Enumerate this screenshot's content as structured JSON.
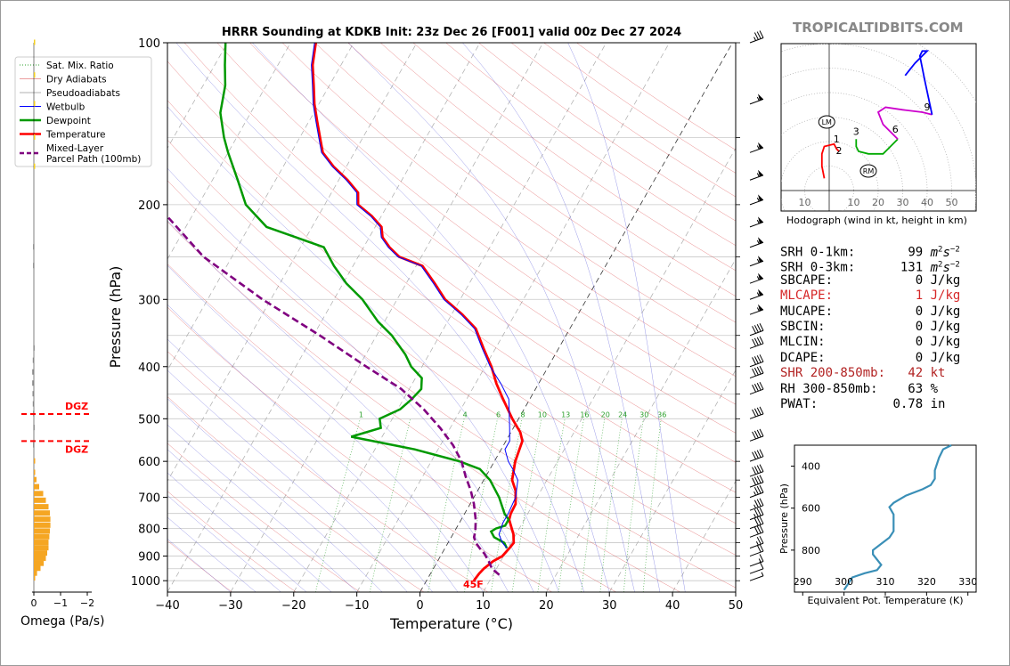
{
  "brand": "TROPICALTIDBITS.COM",
  "chart_data": [
    {
      "type": "line",
      "title": "HRRR Sounding at KDKB Init: 23z Dec 26 [F001] valid 00z Dec 27 2024",
      "xlabel": "Temperature (°C)",
      "ylabel": "Pressure (hPa)",
      "xlim": [
        -40,
        50
      ],
      "ylim": [
        1050,
        100
      ],
      "yscale": "log",
      "skew": true,
      "x_ticks": [
        "−40",
        "−30",
        "−20",
        "−10",
        "0",
        "10",
        "20",
        "30",
        "40",
        "50"
      ],
      "y_ticks": [
        "100",
        "200",
        "300",
        "400",
        "500",
        "600",
        "700",
        "800",
        "900",
        "1000"
      ],
      "legend": [
        "Sat. Mix. Ratio",
        "Dry Adiabats",
        "Pseudoadiabats",
        "Wetbulb",
        "Dewpoint",
        "Temperature",
        "Mixed-Layer\nParcel Path (100mb)"
      ],
      "legend_position": "outside-left",
      "colors": {
        "temperature": "#ff0000",
        "dewpoint": "#009900",
        "wetbulb": "#0000ff",
        "parcel": "#800080",
        "dry_adiabat": "#d62728",
        "moist_adiabat": "#1f1fcc",
        "mix_ratio": "#2ca02c"
      },
      "mixing_ratio_labels": [
        "1",
        "4",
        "6",
        "8",
        "10",
        "13",
        "16",
        "20",
        "24",
        "30",
        "36"
      ],
      "surface_temp_label": "45F",
      "series": [
        {
          "name": "Temperature",
          "points": [
            [
              7.5,
              1000
            ],
            [
              7.7,
              970
            ],
            [
              8.0,
              950
            ],
            [
              8.8,
              920
            ],
            [
              9.8,
              900
            ],
            [
              10.2,
              870
            ],
            [
              10.4,
              850
            ],
            [
              9.6,
              820
            ],
            [
              8.4,
              790
            ],
            [
              7.6,
              770
            ],
            [
              7.3,
              750
            ],
            [
              7.2,
              720
            ],
            [
              6.6,
              700
            ],
            [
              6.0,
              680
            ],
            [
              4.5,
              650
            ],
            [
              3.3,
              600
            ],
            [
              2.6,
              550
            ],
            [
              1.5,
              530
            ],
            [
              -1.0,
              500
            ],
            [
              -4.2,
              460
            ],
            [
              -6.7,
              430
            ],
            [
              -9.0,
              400
            ],
            [
              -11.9,
              370
            ],
            [
              -14.9,
              340
            ],
            [
              -18.3,
              320
            ],
            [
              -22.4,
              300
            ],
            [
              -25.5,
              280
            ],
            [
              -29.0,
              260
            ],
            [
              -33.5,
              250
            ],
            [
              -35.9,
              240
            ],
            [
              -37.9,
              230
            ],
            [
              -39.0,
              220
            ],
            [
              -41.5,
              210
            ],
            [
              -44.7,
              200
            ],
            [
              -45.8,
              190
            ],
            [
              -48.6,
              180
            ],
            [
              -52.0,
              170
            ],
            [
              -55.0,
              160
            ],
            [
              -56.8,
              150
            ],
            [
              -58.7,
              140
            ],
            [
              -60.7,
              130
            ],
            [
              -62.5,
              120
            ],
            [
              -64.5,
              110
            ],
            [
              -66.0,
              100
            ]
          ]
        },
        {
          "name": "Dewpoint",
          "points": [
            [
              9.8,
              870
            ],
            [
              8.9,
              850
            ],
            [
              6.8,
              830
            ],
            [
              5.8,
              810
            ],
            [
              6.3,
              800
            ],
            [
              7.5,
              790
            ],
            [
              7.5,
              770
            ],
            [
              6.3,
              750
            ],
            [
              4.0,
              700
            ],
            [
              1.0,
              650
            ],
            [
              -1.6,
              620
            ],
            [
              -5.5,
              600
            ],
            [
              -13.7,
              570
            ],
            [
              -17.3,
              560
            ],
            [
              -24.9,
              540
            ],
            [
              -21.0,
              520
            ],
            [
              -22.0,
              500
            ],
            [
              -19.6,
              480
            ],
            [
              -18.7,
              460
            ],
            [
              -18.1,
              440
            ],
            [
              -19.0,
              420
            ],
            [
              -21.7,
              400
            ],
            [
              -23.7,
              380
            ],
            [
              -27.6,
              350
            ],
            [
              -31.0,
              330
            ],
            [
              -35.5,
              300
            ],
            [
              -39.5,
              280
            ],
            [
              -43.0,
              260
            ],
            [
              -46.3,
              240
            ],
            [
              -51.6,
              230
            ],
            [
              -57.2,
              220
            ],
            [
              -62.5,
              200
            ],
            [
              -66.0,
              180
            ],
            [
              -70.0,
              160
            ],
            [
              -72.0,
              150
            ],
            [
              -74.8,
              135
            ],
            [
              -76.5,
              120
            ],
            [
              -78.4,
              110
            ],
            [
              -80.3,
              100
            ]
          ]
        },
        {
          "name": "Wetbulb",
          "points": [
            [
              9.8,
              870
            ],
            [
              8.6,
              850
            ],
            [
              7.3,
              820
            ],
            [
              6.9,
              780
            ],
            [
              6.9,
              750
            ],
            [
              6.6,
              700
            ],
            [
              5.4,
              650
            ],
            [
              3.6,
              620
            ],
            [
              2.2,
              600
            ],
            [
              0.6,
              570
            ],
            [
              0.6,
              550
            ],
            [
              -0.6,
              520
            ],
            [
              -3.3,
              460
            ],
            [
              -6.0,
              430
            ],
            [
              -9.2,
              400
            ],
            [
              -12.1,
              370
            ],
            [
              -15.1,
              340
            ],
            [
              -18.5,
              320
            ],
            [
              -22.6,
              300
            ],
            [
              -25.7,
              280
            ],
            [
              -29.2,
              260
            ],
            [
              -33.7,
              250
            ],
            [
              -36.1,
              240
            ],
            [
              -38.1,
              230
            ],
            [
              -39.2,
              220
            ],
            [
              -41.7,
              210
            ],
            [
              -44.9,
              200
            ],
            [
              -46.0,
              190
            ],
            [
              -48.8,
              180
            ],
            [
              -52.2,
              170
            ],
            [
              -55.2,
              160
            ],
            [
              -57.0,
              150
            ],
            [
              -58.9,
              140
            ],
            [
              -60.9,
              130
            ],
            [
              -62.7,
              120
            ],
            [
              -64.7,
              110
            ],
            [
              -66.2,
              100
            ]
          ]
        },
        {
          "name": "Mixed-Layer\nParcel Path (100mb)",
          "points": [
            [
              11.0,
              975
            ],
            [
              9.3,
              950
            ],
            [
              8.1,
              920
            ],
            [
              6.7,
              890
            ],
            [
              5.5,
              870
            ],
            [
              4.4,
              850
            ],
            [
              3.6,
              830
            ],
            [
              3.3,
              810
            ],
            [
              2.3,
              770
            ],
            [
              0.6,
              720
            ],
            [
              -1.1,
              680
            ],
            [
              -3.2,
              640
            ],
            [
              -5.2,
              600
            ],
            [
              -8.0,
              560
            ],
            [
              -11.6,
              520
            ],
            [
              -15.9,
              480
            ],
            [
              -21.3,
              440
            ],
            [
              -28.8,
              400
            ],
            [
              -39.0,
              350
            ],
            [
              -51.3,
              300
            ],
            [
              -64.5,
              250
            ],
            [
              -76.6,
              200
            ],
            [
              -81.0,
              185
            ]
          ]
        }
      ],
      "wind_barbs_kt": [
        {
          "p": 1000,
          "speed": 5
        },
        {
          "p": 970,
          "speed": 10
        },
        {
          "p": 940,
          "speed": 15
        },
        {
          "p": 900,
          "speed": 20
        },
        {
          "p": 870,
          "speed": 25
        },
        {
          "p": 830,
          "speed": 30
        },
        {
          "p": 800,
          "speed": 30
        },
        {
          "p": 770,
          "speed": 35
        },
        {
          "p": 740,
          "speed": 35
        },
        {
          "p": 700,
          "speed": 35
        },
        {
          "p": 670,
          "speed": 40
        },
        {
          "p": 640,
          "speed": 40
        },
        {
          "p": 600,
          "speed": 40
        },
        {
          "p": 550,
          "speed": 40
        },
        {
          "p": 500,
          "speed": 40
        },
        {
          "p": 450,
          "speed": 40
        },
        {
          "p": 420,
          "speed": 40
        },
        {
          "p": 400,
          "speed": 40
        },
        {
          "p": 370,
          "speed": 40
        },
        {
          "p": 350,
          "speed": 40
        },
        {
          "p": 320,
          "speed": 55
        },
        {
          "p": 300,
          "speed": 55
        },
        {
          "p": 280,
          "speed": 55
        },
        {
          "p": 260,
          "speed": 55
        },
        {
          "p": 240,
          "speed": 55
        },
        {
          "p": 220,
          "speed": 55
        },
        {
          "p": 200,
          "speed": 55
        },
        {
          "p": 180,
          "speed": 55
        },
        {
          "p": 160,
          "speed": 55
        },
        {
          "p": 130,
          "speed": 55
        },
        {
          "p": 100,
          "speed": 35
        }
      ]
    },
    {
      "type": "bar",
      "name": "omega",
      "xlabel": "Omega (Pa/s)",
      "x_ticks": [
        "0",
        "−1",
        "−2"
      ],
      "xlim": [
        0,
        -2
      ],
      "dgz_label": "DGZ",
      "dgz_bounds_hpa": [
        490,
        550
      ],
      "bars": [
        {
          "p": 990,
          "value": -0.05
        },
        {
          "p": 970,
          "value": -0.12
        },
        {
          "p": 950,
          "value": -0.25
        },
        {
          "p": 930,
          "value": -0.37
        },
        {
          "p": 910,
          "value": -0.45
        },
        {
          "p": 890,
          "value": -0.5
        },
        {
          "p": 870,
          "value": -0.55
        },
        {
          "p": 850,
          "value": -0.55
        },
        {
          "p": 830,
          "value": -0.58
        },
        {
          "p": 810,
          "value": -0.6
        },
        {
          "p": 790,
          "value": -0.62
        },
        {
          "p": 770,
          "value": -0.62
        },
        {
          "p": 750,
          "value": -0.6
        },
        {
          "p": 730,
          "value": -0.55
        },
        {
          "p": 710,
          "value": -0.45
        },
        {
          "p": 690,
          "value": -0.35
        },
        {
          "p": 670,
          "value": -0.2
        },
        {
          "p": 650,
          "value": -0.1
        },
        {
          "p": 630,
          "value": -0.05
        },
        {
          "p": 600,
          "value": -0.03
        },
        {
          "p": 560,
          "value": 0.03
        },
        {
          "p": 520,
          "value": 0.02
        },
        {
          "p": 490,
          "value": 0.03
        },
        {
          "p": 470,
          "value": 0.04
        },
        {
          "p": 450,
          "value": 0.05
        },
        {
          "p": 430,
          "value": 0.06
        },
        {
          "p": 410,
          "value": 0.06
        },
        {
          "p": 390,
          "value": 0.04
        },
        {
          "p": 370,
          "value": 0.02
        },
        {
          "p": 260,
          "value": 0.03
        },
        {
          "p": 240,
          "value": 0.03
        },
        {
          "p": 170,
          "value": -0.01
        },
        {
          "p": 150,
          "value": -0.01
        },
        {
          "p": 130,
          "value": -0.01
        },
        {
          "p": 115,
          "value": -0.01
        },
        {
          "p": 100,
          "value": -0.01
        }
      ]
    },
    {
      "type": "line",
      "name": "hodograph",
      "caption": "Hodograph (wind in kt, height in km)",
      "x_ticks": [
        "10",
        "10",
        "20",
        "30",
        "40",
        "50"
      ],
      "height_labels": [
        "1",
        "2",
        "3",
        "6",
        "9"
      ],
      "markers": [
        "LM",
        "RM"
      ],
      "colors": [
        "#ff0000",
        "#00aa00",
        "#cc00cc",
        "#0000ff"
      ]
    },
    {
      "type": "line",
      "name": "theta-e",
      "xlabel": "Equivalent Pot. Temperature (K)",
      "ylabel": "Pressure (hPa)",
      "x_ticks": [
        "290",
        "300",
        "310",
        "320",
        "330"
      ],
      "y_ticks": [
        "400",
        "600",
        "800"
      ],
      "xlim": [
        288,
        332
      ],
      "ylim": [
        1000,
        300
      ],
      "points": [
        [
          300,
          990
        ],
        [
          301,
          960
        ],
        [
          302,
          930
        ],
        [
          305,
          910
        ],
        [
          308,
          895
        ],
        [
          309,
          870
        ],
        [
          307,
          820
        ],
        [
          307,
          800
        ],
        [
          309,
          770
        ],
        [
          311,
          740
        ],
        [
          312,
          710
        ],
        [
          312,
          660
        ],
        [
          312,
          630
        ],
        [
          311,
          595
        ],
        [
          312,
          575
        ],
        [
          315,
          540
        ],
        [
          319,
          510
        ],
        [
          321,
          490
        ],
        [
          322,
          460
        ],
        [
          322,
          420
        ],
        [
          323,
          360
        ],
        [
          324,
          320
        ],
        [
          326,
          300
        ]
      ]
    }
  ],
  "stats": [
    {
      "label": "SRH 0-1km:",
      "value": "99",
      "unit": "m2s-2",
      "hl": false
    },
    {
      "label": "SRH 0-3km:",
      "value": "131",
      "unit": "m2s-2",
      "hl": false
    },
    {
      "label": "SBCAPE:",
      "value": "0",
      "unit": "J/kg",
      "hl": false
    },
    {
      "label": "MLCAPE:",
      "value": "1",
      "unit": "J/kg",
      "hl": true
    },
    {
      "label": "MUCAPE:",
      "value": "0",
      "unit": "J/kg",
      "hl": false
    },
    {
      "label": "SBCIN:",
      "value": "0",
      "unit": "J/kg",
      "hl": false
    },
    {
      "label": "MLCIN:",
      "value": "0",
      "unit": "J/kg",
      "hl": false
    },
    {
      "label": "DCAPE:",
      "value": "0",
      "unit": "J/kg",
      "hl": false
    },
    {
      "label": "SHR 200-850mb:",
      "value": "42",
      "unit": "kt",
      "hl": true
    },
    {
      "label": "RH 300-850mb:",
      "value": "63",
      "unit": "%",
      "hl": false
    },
    {
      "label": "PWAT:",
      "value": "0.78",
      "unit": "in",
      "hl": false
    }
  ]
}
